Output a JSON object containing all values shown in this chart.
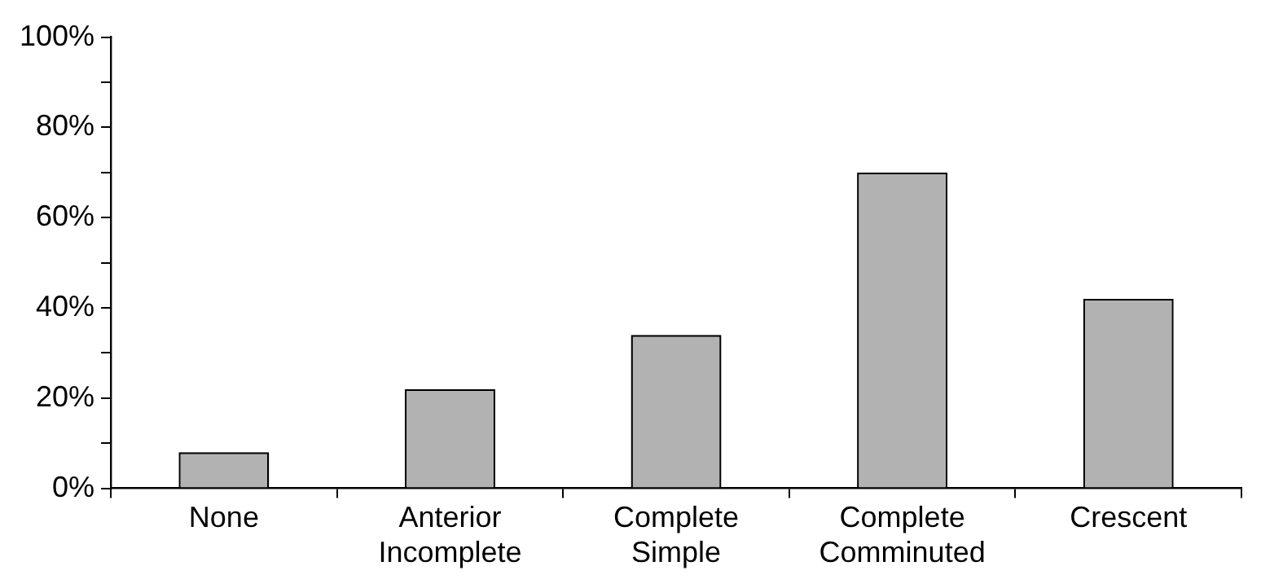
{
  "chart_data": {
    "type": "bar",
    "categories": [
      "None",
      "Anterior Incomplete",
      "Complete Simple",
      "Complete Comminuted",
      "Crescent"
    ],
    "values": [
      8,
      22,
      34,
      70,
      42
    ],
    "color": "#b2b2b2",
    "ylim": [
      0,
      100
    ],
    "yticks": [
      {
        "value": 0,
        "label": "0%"
      },
      {
        "value": 10,
        "label": null
      },
      {
        "value": 20,
        "label": "20%"
      },
      {
        "value": 30,
        "label": null
      },
      {
        "value": 40,
        "label": "40%"
      },
      {
        "value": 50,
        "label": null
      },
      {
        "value": 60,
        "label": "60%"
      },
      {
        "value": 70,
        "label": null
      },
      {
        "value": 80,
        "label": "80%"
      },
      {
        "value": 90,
        "label": null
      },
      {
        "value": 100,
        "label": "100%"
      }
    ],
    "grid": false,
    "legend": false
  }
}
